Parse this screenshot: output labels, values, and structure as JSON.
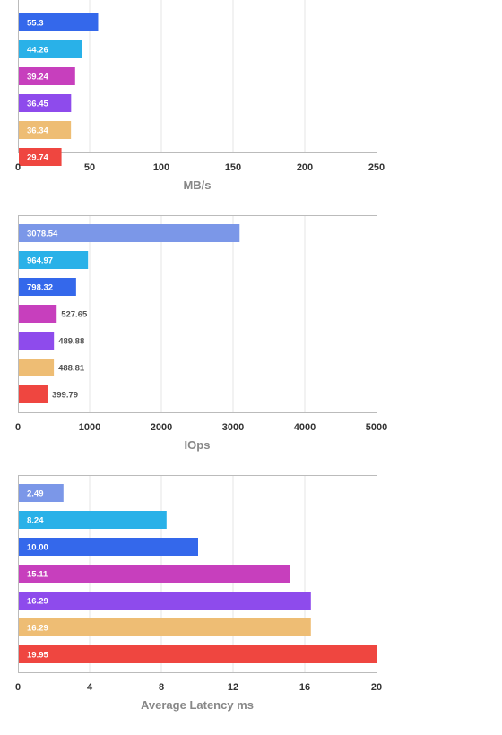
{
  "colors": [
    "#7b97e8",
    "#29b1e8",
    "#3468eb",
    "#c73fbd",
    "#8e4bec",
    "#eebd74",
    "#ef4640"
  ],
  "chart_data": [
    {
      "type": "bar",
      "orientation": "horizontal",
      "xlabel": "MB/s",
      "xlim": [
        0,
        250
      ],
      "xticks": [
        "0",
        "50",
        "100",
        "150",
        "200",
        "250"
      ],
      "values": [
        55.3,
        44.26,
        39.24,
        36.45,
        36.34,
        29.74
      ],
      "labels": [
        "55.3",
        "44.26",
        "39.24",
        "36.45",
        "36.34",
        "29.74"
      ],
      "colors": [
        "#3468eb",
        "#29b1e8",
        "#c73fbd",
        "#8e4bec",
        "#eebd74",
        "#ef4640"
      ],
      "grid": true
    },
    {
      "type": "bar",
      "orientation": "horizontal",
      "xlabel": "IOps",
      "xlim": [
        0,
        5000
      ],
      "xticks": [
        "0",
        "1000",
        "2000",
        "3000",
        "4000",
        "5000"
      ],
      "values": [
        3078.54,
        964.97,
        798.32,
        527.65,
        489.88,
        488.81,
        399.79
      ],
      "labels": [
        "3078.54",
        "964.97",
        "798.32",
        "527.65",
        "489.88",
        "488.81",
        "399.79"
      ],
      "colors": [
        "#7b97e8",
        "#29b1e8",
        "#3468eb",
        "#c73fbd",
        "#8e4bec",
        "#eebd74",
        "#ef4640"
      ],
      "grid": true
    },
    {
      "type": "bar",
      "orientation": "horizontal",
      "xlabel": "Average Latency ms",
      "xlim": [
        0,
        20
      ],
      "xticks": [
        "0",
        "4",
        "8",
        "12",
        "16",
        "20"
      ],
      "values": [
        2.49,
        8.24,
        10.0,
        15.11,
        16.29,
        16.29,
        19.95
      ],
      "labels": [
        "2.49",
        "8.24",
        "10.00",
        "15.11",
        "16.29",
        "16.29",
        "19.95"
      ],
      "colors": [
        "#7b97e8",
        "#29b1e8",
        "#3468eb",
        "#c73fbd",
        "#8e4bec",
        "#eebd74",
        "#ef4640"
      ],
      "grid": true
    }
  ]
}
